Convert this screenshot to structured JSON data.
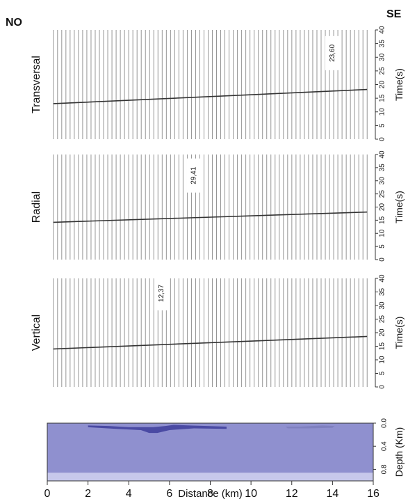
{
  "figure": {
    "left_label": "NO",
    "right_label": "SE"
  },
  "chart_data": [
    {
      "type": "line",
      "panel_label": "Transversal",
      "ylabel": "Time(s)",
      "ylim": [
        0,
        40
      ],
      "yticks": [
        0,
        5,
        10,
        15,
        20,
        25,
        30,
        35,
        40
      ],
      "xlim": [
        0,
        16
      ],
      "annotation": "23,60",
      "annotation_x": 14.0,
      "annotation_y": 31.5,
      "traces": {
        "x_start": 0.3,
        "x_end": 15.7,
        "count": 76,
        "color": "#7d7d7d"
      },
      "series": [
        {
          "values": [
            {
              "x": 0.3,
              "y": 13.0
            },
            {
              "x": 15.7,
              "y": 18.2
            }
          ],
          "color": "#333333"
        }
      ],
      "grid": false
    },
    {
      "type": "line",
      "panel_label": "Radial",
      "ylabel": "Time(s)",
      "ylim": [
        0,
        40
      ],
      "yticks": [
        0,
        5,
        10,
        15,
        20,
        25,
        30,
        35,
        40
      ],
      "xlim": [
        0,
        16
      ],
      "annotation": "29,41",
      "annotation_x": 7.2,
      "annotation_y": 32.0,
      "traces": {
        "x_start": 0.3,
        "x_end": 15.7,
        "count": 76,
        "color": "#7d7d7d"
      },
      "series": [
        {
          "values": [
            {
              "x": 0.3,
              "y": 14.2
            },
            {
              "x": 15.7,
              "y": 18.1
            }
          ],
          "color": "#333333"
        }
      ],
      "grid": false
    },
    {
      "type": "line",
      "panel_label": "Vertical",
      "ylabel": "Time(s)",
      "ylim": [
        0,
        40
      ],
      "yticks": [
        0,
        5,
        10,
        15,
        20,
        25,
        30,
        35,
        40
      ],
      "xlim": [
        0,
        16
      ],
      "annotation": "12,37",
      "annotation_x": 5.6,
      "annotation_y": 34.5,
      "traces": {
        "x_start": 0.3,
        "x_end": 15.7,
        "count": 76,
        "color": "#7d7d7d"
      },
      "series": [
        {
          "values": [
            {
              "x": 0.3,
              "y": 14.0
            },
            {
              "x": 15.7,
              "y": 18.6
            }
          ],
          "color": "#333333"
        }
      ],
      "grid": false
    },
    {
      "type": "area",
      "ylabel": "Depth (Km)",
      "xlabel": "Distance (km)",
      "xlim": [
        0,
        16
      ],
      "ylim": [
        0,
        1.0
      ],
      "xticks": [
        0,
        2,
        4,
        6,
        8,
        10,
        12,
        14,
        16
      ],
      "yticks": [
        "0.0",
        "0.4",
        "0.8"
      ],
      "ytick_values": [
        0.0,
        0.4,
        0.8
      ],
      "layers": [
        {
          "name": "",
          "color": "#8f90cf",
          "top_depth": 0.0,
          "bottom_depth": 0.86
        },
        {
          "name": "",
          "color": "#c7c8eb",
          "top_depth": 0.86,
          "bottom_depth": 1.0
        }
      ],
      "bodies": [
        {
          "name": "",
          "color": "#4a4aa3",
          "points": [
            {
              "x": 2.0,
              "y": 0.04
            },
            {
              "x": 3.0,
              "y": 0.05
            },
            {
              "x": 4.0,
              "y": 0.07
            },
            {
              "x": 5.2,
              "y": 0.07
            },
            {
              "x": 5.8,
              "y": 0.05
            },
            {
              "x": 6.2,
              "y": 0.03
            },
            {
              "x": 7.0,
              "y": 0.04
            },
            {
              "x": 8.8,
              "y": 0.06
            },
            {
              "x": 8.8,
              "y": 0.1
            },
            {
              "x": 7.2,
              "y": 0.09
            },
            {
              "x": 6.0,
              "y": 0.12
            },
            {
              "x": 5.4,
              "y": 0.17
            },
            {
              "x": 5.0,
              "y": 0.17
            },
            {
              "x": 4.6,
              "y": 0.12
            },
            {
              "x": 3.4,
              "y": 0.1
            },
            {
              "x": 2.0,
              "y": 0.07
            }
          ]
        },
        {
          "name": "",
          "color": "#7f80bf",
          "points": [
            {
              "x": 11.7,
              "y": 0.06
            },
            {
              "x": 12.4,
              "y": 0.06
            },
            {
              "x": 13.5,
              "y": 0.04
            },
            {
              "x": 14.1,
              "y": 0.05
            },
            {
              "x": 14.0,
              "y": 0.08
            },
            {
              "x": 12.8,
              "y": 0.09
            },
            {
              "x": 11.8,
              "y": 0.09
            }
          ]
        }
      ]
    }
  ]
}
